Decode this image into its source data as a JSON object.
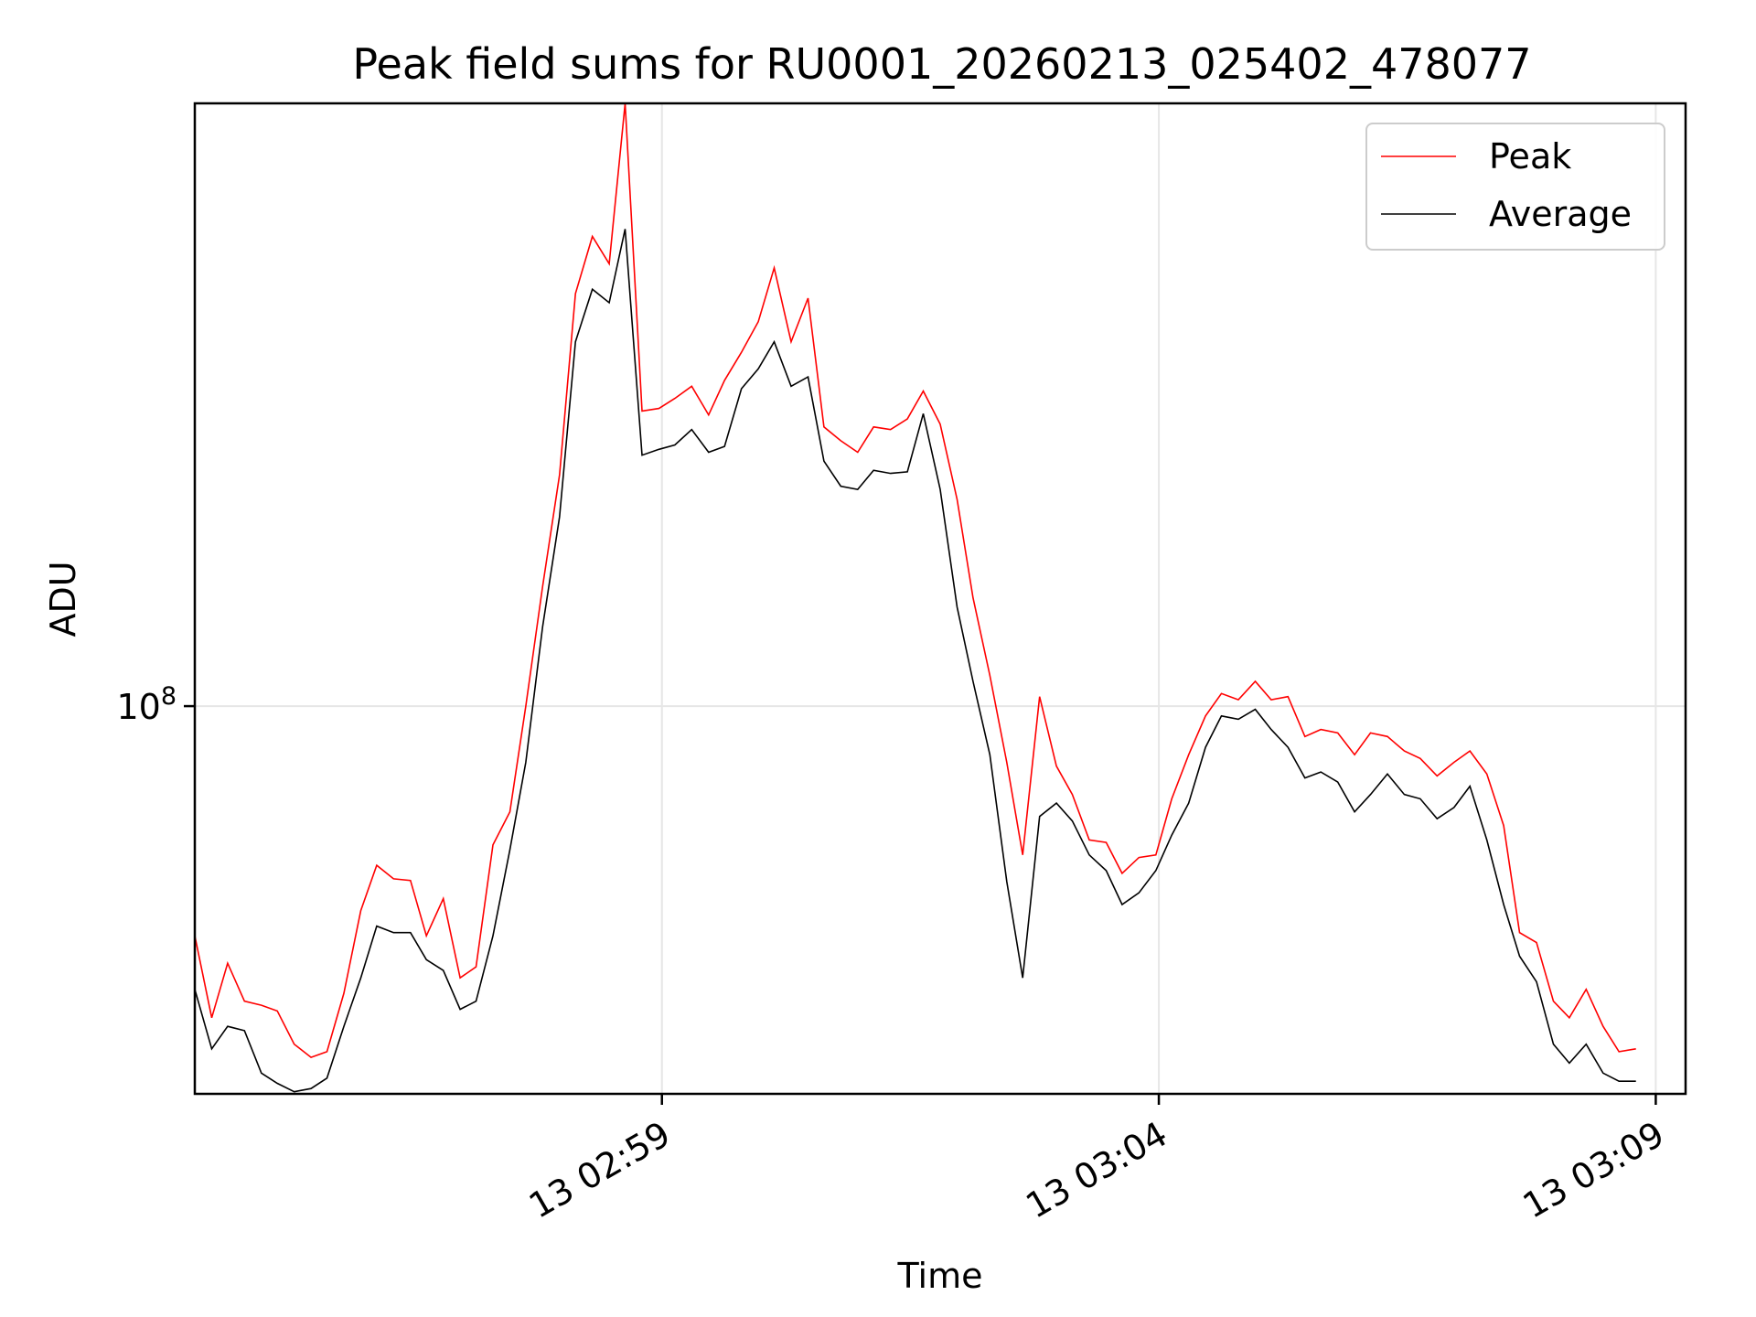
{
  "chart_data": {
    "type": "line",
    "title": "Peak field sums for RU0001_20260213_025402_478077",
    "xlabel": "Time",
    "ylabel": "ADU",
    "x_unit": "seconds after 13 02:54:00",
    "x_ticks": [
      {
        "value": 299,
        "label": "13 02:59"
      },
      {
        "value": 304,
        "label": "13 03:04"
      },
      {
        "value": 309,
        "label": "13 03:09"
      }
    ],
    "y_scale": "log",
    "y_ticks": [
      {
        "value": 100000000,
        "base": "10",
        "exponent": "8"
      }
    ],
    "xlim": [
      294.3,
      309.3
    ],
    "ylim": [
      30000000,
      650000000
    ],
    "grid": true,
    "legend_position": "top-right",
    "series": [
      {
        "name": "Peak",
        "color": "#ff0000",
        "values": [
          [
            294.3,
            49000000.0
          ],
          [
            294.47,
            38000000.0
          ],
          [
            294.63,
            45000000.0
          ],
          [
            294.8,
            40000000.0
          ],
          [
            294.97,
            39500000.0
          ],
          [
            295.13,
            38800000.0
          ],
          [
            295.3,
            35000000.0
          ],
          [
            295.47,
            33600000.0
          ],
          [
            295.63,
            34200000.0
          ],
          [
            295.8,
            41000000.0
          ],
          [
            295.97,
            53000000.0
          ],
          [
            296.13,
            61000000.0
          ],
          [
            296.3,
            58500000.0
          ],
          [
            296.47,
            58200000.0
          ],
          [
            296.63,
            49000000.0
          ],
          [
            296.8,
            55000000.0
          ],
          [
            296.97,
            43000000.0
          ],
          [
            297.13,
            44500000.0
          ],
          [
            297.3,
            65000000.0
          ],
          [
            297.47,
            72000000.0
          ],
          [
            297.63,
            100000000.0
          ],
          [
            297.8,
            145000000.0
          ],
          [
            297.97,
            205000000.0
          ],
          [
            298.13,
            360000000.0
          ],
          [
            298.3,
            430000000.0
          ],
          [
            298.47,
            395000000.0
          ],
          [
            298.63,
            650000000.0
          ],
          [
            298.8,
            250000000.0
          ],
          [
            298.97,
            252000000.0
          ],
          [
            299.13,
            260000000.0
          ],
          [
            299.3,
            270000000.0
          ],
          [
            299.47,
            247000000.0
          ],
          [
            299.63,
            275000000.0
          ],
          [
            299.8,
            300000000.0
          ],
          [
            299.97,
            330000000.0
          ],
          [
            300.13,
            390000000.0
          ],
          [
            300.3,
            310000000.0
          ],
          [
            300.47,
            355000000.0
          ],
          [
            300.63,
            238000000.0
          ],
          [
            300.8,
            228000000.0
          ],
          [
            300.97,
            220000000.0
          ],
          [
            301.13,
            238000000.0
          ],
          [
            301.3,
            236000000.0
          ],
          [
            301.47,
            244000000.0
          ],
          [
            301.63,
            266000000.0
          ],
          [
            301.8,
            240000000.0
          ],
          [
            301.97,
            190000000.0
          ],
          [
            302.13,
            140000000.0
          ],
          [
            302.3,
            110000000.0
          ],
          [
            302.47,
            84000000.0
          ],
          [
            302.63,
            63000000.0
          ],
          [
            302.8,
            103000000.0
          ],
          [
            302.97,
            83000000.0
          ],
          [
            303.13,
            76000000.0
          ],
          [
            303.3,
            66000000.0
          ],
          [
            303.47,
            65500000.0
          ],
          [
            303.63,
            59500000.0
          ],
          [
            303.8,
            62500000.0
          ],
          [
            303.97,
            63000000.0
          ],
          [
            304.13,
            75000000.0
          ],
          [
            304.3,
            86000000.0
          ],
          [
            304.47,
            97000000.0
          ],
          [
            304.63,
            104000000.0
          ],
          [
            304.8,
            102000000.0
          ],
          [
            304.97,
            108000000.0
          ],
          [
            305.13,
            102000000.0
          ],
          [
            305.3,
            103000000.0
          ],
          [
            305.47,
            91000000.0
          ],
          [
            305.63,
            93000000.0
          ],
          [
            305.8,
            92000000.0
          ],
          [
            305.97,
            86000000.0
          ],
          [
            306.13,
            92000000.0
          ],
          [
            306.3,
            91000000.0
          ],
          [
            306.47,
            87000000.0
          ],
          [
            306.63,
            85000000.0
          ],
          [
            306.8,
            80500000.0
          ],
          [
            306.97,
            84000000.0
          ],
          [
            307.13,
            87000000.0
          ],
          [
            307.3,
            81000000.0
          ],
          [
            307.47,
            69000000.0
          ],
          [
            307.63,
            49500000.0
          ],
          [
            307.8,
            48000000.0
          ],
          [
            307.97,
            40000000.0
          ],
          [
            308.13,
            38000000.0
          ],
          [
            308.3,
            41500000.0
          ],
          [
            308.47,
            37000000.0
          ],
          [
            308.63,
            34200000.0
          ],
          [
            308.8,
            34500000.0
          ]
        ]
      },
      {
        "name": "Average",
        "color": "#000000",
        "values": [
          [
            294.3,
            41500000.0
          ],
          [
            294.47,
            34500000.0
          ],
          [
            294.63,
            37000000.0
          ],
          [
            294.8,
            36500000.0
          ],
          [
            294.97,
            32000000.0
          ],
          [
            295.13,
            31000000.0
          ],
          [
            295.3,
            30200000.0
          ],
          [
            295.47,
            30500000.0
          ],
          [
            295.63,
            31500000.0
          ],
          [
            295.8,
            37000000.0
          ],
          [
            295.97,
            43000000.0
          ],
          [
            296.13,
            50500000.0
          ],
          [
            296.3,
            49500000.0
          ],
          [
            296.47,
            49500000.0
          ],
          [
            296.63,
            45500000.0
          ],
          [
            296.8,
            44000000.0
          ],
          [
            296.97,
            39000000.0
          ],
          [
            297.13,
            40000000.0
          ],
          [
            297.3,
            49000000.0
          ],
          [
            297.47,
            64000000.0
          ],
          [
            297.63,
            84000000.0
          ],
          [
            297.8,
            128000000.0
          ],
          [
            297.97,
            180000000.0
          ],
          [
            298.13,
            310000000.0
          ],
          [
            298.3,
            365000000.0
          ],
          [
            298.47,
            350000000.0
          ],
          [
            298.63,
            440000000.0
          ],
          [
            298.8,
            218000000.0
          ],
          [
            298.97,
            222000000.0
          ],
          [
            299.13,
            225000000.0
          ],
          [
            299.3,
            236000000.0
          ],
          [
            299.47,
            220000000.0
          ],
          [
            299.63,
            224000000.0
          ],
          [
            299.8,
            268000000.0
          ],
          [
            299.97,
            285000000.0
          ],
          [
            300.13,
            310000000.0
          ],
          [
            300.3,
            270000000.0
          ],
          [
            300.47,
            278000000.0
          ],
          [
            300.63,
            214000000.0
          ],
          [
            300.8,
            198000000.0
          ],
          [
            300.97,
            196000000.0
          ],
          [
            301.13,
            208000000.0
          ],
          [
            301.3,
            206000000.0
          ],
          [
            301.47,
            207000000.0
          ],
          [
            301.63,
            248000000.0
          ],
          [
            301.8,
            196000000.0
          ],
          [
            301.97,
            136000000.0
          ],
          [
            302.13,
            108000000.0
          ],
          [
            302.3,
            86000000.0
          ],
          [
            302.47,
            58000000.0
          ],
          [
            302.63,
            43000000.0
          ],
          [
            302.8,
            71000000.0
          ],
          [
            302.97,
            74000000.0
          ],
          [
            303.13,
            70000000.0
          ],
          [
            303.3,
            63000000.0
          ],
          [
            303.47,
            60000000.0
          ],
          [
            303.63,
            54000000.0
          ],
          [
            303.8,
            56000000.0
          ],
          [
            303.97,
            60000000.0
          ],
          [
            304.13,
            67000000.0
          ],
          [
            304.3,
            74000000.0
          ],
          [
            304.47,
            88000000.0
          ],
          [
            304.63,
            97000000.0
          ],
          [
            304.8,
            96000000.0
          ],
          [
            304.97,
            99000000.0
          ],
          [
            305.13,
            93000000.0
          ],
          [
            305.3,
            88000000.0
          ],
          [
            305.47,
            80000000.0
          ],
          [
            305.63,
            81500000.0
          ],
          [
            305.8,
            79000000.0
          ],
          [
            305.97,
            72000000.0
          ],
          [
            306.13,
            76000000.0
          ],
          [
            306.3,
            81000000.0
          ],
          [
            306.47,
            76000000.0
          ],
          [
            306.63,
            75000000.0
          ],
          [
            306.8,
            70500000.0
          ],
          [
            306.97,
            73000000.0
          ],
          [
            307.13,
            78000000.0
          ],
          [
            307.3,
            66000000.0
          ],
          [
            307.47,
            54000000.0
          ],
          [
            307.63,
            46000000.0
          ],
          [
            307.8,
            42500000.0
          ],
          [
            307.97,
            35000000.0
          ],
          [
            308.13,
            33000000.0
          ],
          [
            308.3,
            35000000.0
          ],
          [
            308.47,
            32000000.0
          ],
          [
            308.63,
            31200000.0
          ],
          [
            308.8,
            31200000.0
          ]
        ]
      }
    ]
  }
}
